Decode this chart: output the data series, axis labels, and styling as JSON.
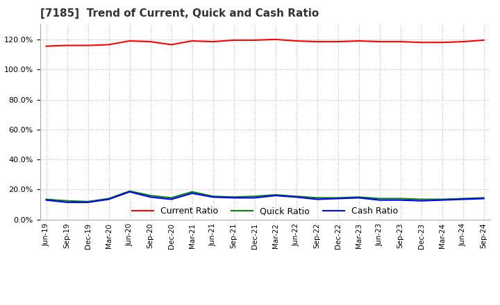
{
  "title": "[7185]  Trend of Current, Quick and Cash Ratio",
  "x_labels": [
    "Jun-19",
    "Sep-19",
    "Dec-19",
    "Mar-20",
    "Jun-20",
    "Sep-20",
    "Dec-20",
    "Mar-21",
    "Jun-21",
    "Sep-21",
    "Dec-21",
    "Mar-22",
    "Jun-22",
    "Sep-22",
    "Dec-22",
    "Mar-23",
    "Jun-23",
    "Sep-23",
    "Dec-23",
    "Mar-24",
    "Jun-24",
    "Sep-24"
  ],
  "current_ratio": [
    115.5,
    116.0,
    116.0,
    116.5,
    119.0,
    118.5,
    116.5,
    119.0,
    118.5,
    119.5,
    119.5,
    120.0,
    119.0,
    118.5,
    118.5,
    119.0,
    118.5,
    118.5,
    118.0,
    118.0,
    118.5,
    119.5
  ],
  "quick_ratio": [
    13.5,
    12.5,
    12.0,
    14.0,
    19.0,
    16.0,
    14.5,
    18.5,
    15.5,
    15.0,
    15.5,
    16.5,
    15.5,
    14.5,
    14.5,
    15.0,
    14.0,
    14.0,
    13.5,
    13.5,
    14.0,
    14.5
  ],
  "cash_ratio": [
    13.0,
    11.5,
    11.5,
    13.5,
    18.5,
    15.0,
    13.5,
    17.5,
    15.0,
    14.5,
    14.5,
    16.0,
    15.0,
    13.5,
    14.0,
    14.5,
    13.0,
    13.0,
    12.5,
    13.0,
    13.5,
    14.0
  ],
  "current_color": "#FF0000",
  "quick_color": "#008000",
  "cash_color": "#0000FF",
  "ylim": [
    0,
    130
  ],
  "yticks": [
    0.0,
    20.0,
    40.0,
    60.0,
    80.0,
    100.0,
    120.0
  ],
  "bg_color": "#FFFFFF",
  "grid_color": "#AAAAAA",
  "title_fontsize": 11,
  "legend_labels": [
    "Current Ratio",
    "Quick Ratio",
    "Cash Ratio"
  ]
}
